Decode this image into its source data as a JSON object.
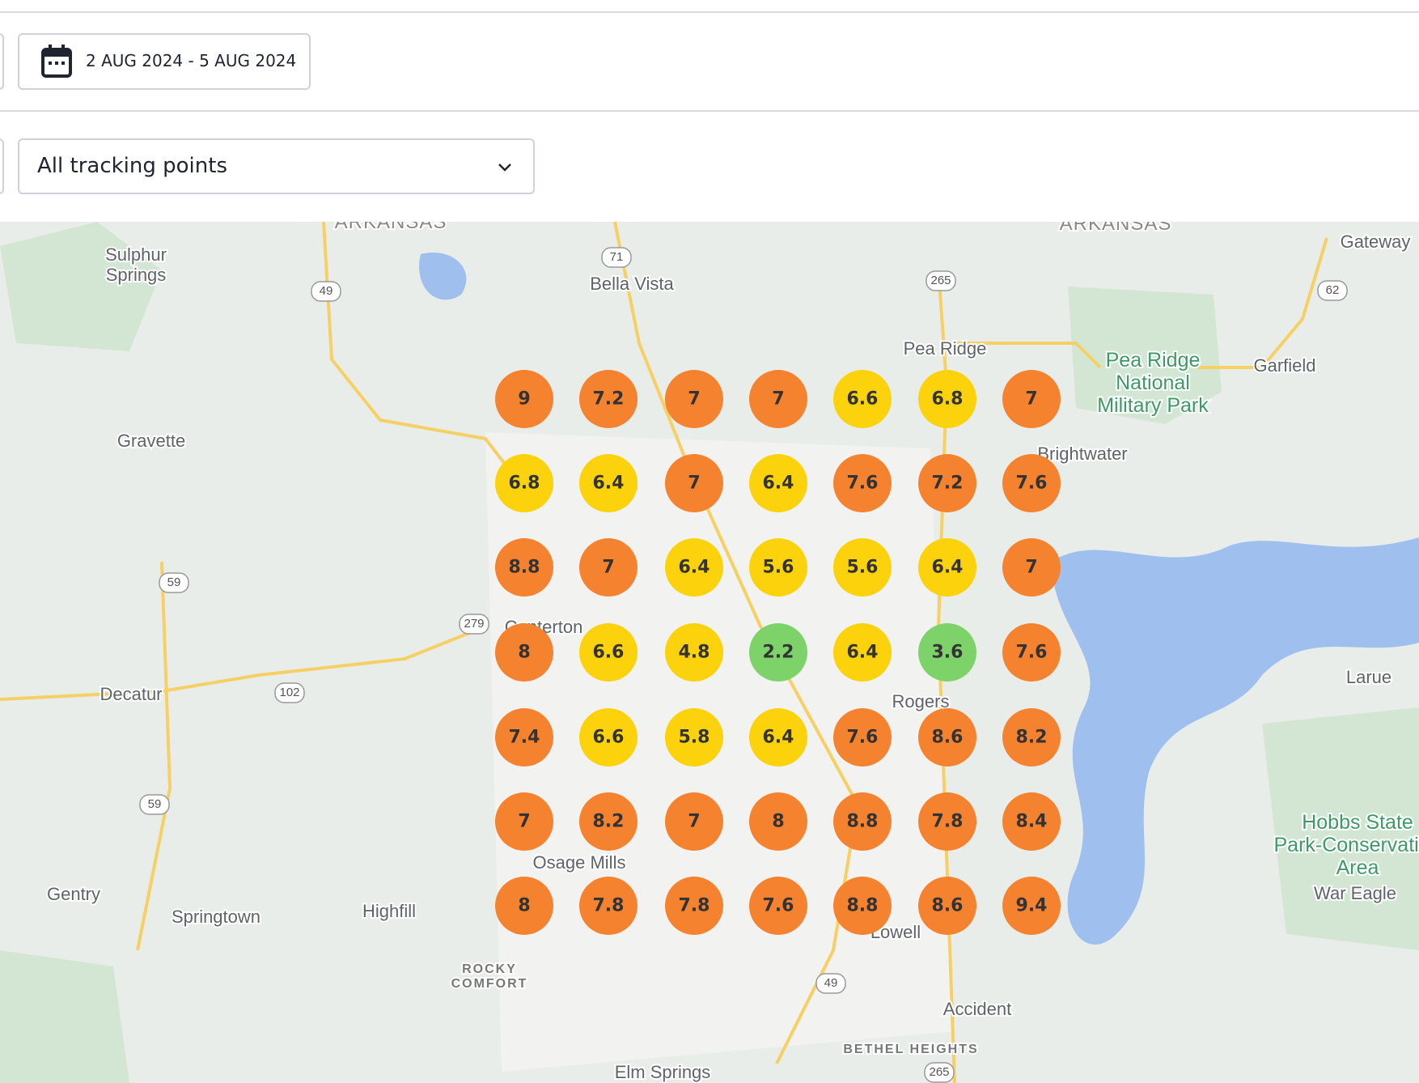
{
  "toolbar": {
    "date_range": "2 AUG 2024 - 5 AUG 2024",
    "filter": "All tracking points"
  },
  "map": {
    "labels": [
      [
        "ARKANSAS"
      ],
      [
        "ARKANSAS"
      ],
      [
        "Sulphur",
        "Springs"
      ],
      [
        "Bella Vista"
      ],
      [
        "Pea Ridge"
      ],
      [
        "Pea Ridge",
        "National",
        "Military Park"
      ],
      [
        "Garfield"
      ],
      [
        "Gateway"
      ],
      [
        "Gravette"
      ],
      [
        "Brightwater"
      ],
      [
        "Decatur"
      ],
      [
        "Centerton"
      ],
      [
        "Rogers"
      ],
      [
        "Osage Mills"
      ],
      [
        "Gentry"
      ],
      [
        "Springtown"
      ],
      [
        "Highfill"
      ],
      [
        "Lowell"
      ],
      [
        "Accident"
      ],
      [
        "Larue"
      ],
      [
        "War Eagle"
      ],
      [
        "Elm Springs"
      ],
      [
        "Hobbs State",
        "Park-Conservation",
        "Area"
      ],
      [
        "ROCKY",
        "COMFORT"
      ],
      [
        "BETHEL HEIGHTS"
      ]
    ],
    "routes": [
      "71",
      "49",
      "265",
      "62",
      "59",
      "102",
      "279",
      "59",
      "49",
      "265"
    ],
    "grid": [
      {
        "values": [
          9,
          7.2,
          7,
          7,
          6.6,
          6.8,
          7
        ],
        "colors": [
          "#f5822f",
          "#f5822f",
          "#f5822f",
          "#f5822f",
          "#fcd20c",
          "#fcd20c",
          "#f5822f"
        ]
      },
      {
        "values": [
          6.8,
          6.4,
          7,
          6.4,
          7.6,
          7.2,
          7.6
        ],
        "colors": [
          "#fcd20c",
          "#fcd20c",
          "#f5822f",
          "#fcd20c",
          "#f5822f",
          "#f5822f",
          "#f5822f"
        ]
      },
      {
        "values": [
          8.8,
          7,
          6.4,
          5.6,
          5.6,
          6.4,
          7
        ],
        "colors": [
          "#f5822f",
          "#f5822f",
          "#fcd20c",
          "#fcd20c",
          "#fcd20c",
          "#fcd20c",
          "#f5822f"
        ]
      },
      {
        "values": [
          8,
          6.6,
          4.8,
          2.2,
          6.4,
          3.6,
          7.6
        ],
        "colors": [
          "#f5822f",
          "#fcd20c",
          "#fcd20c",
          "#7dd36a",
          "#fcd20c",
          "#7dd36a",
          "#f5822f"
        ]
      },
      {
        "values": [
          7.4,
          6.6,
          5.8,
          6.4,
          7.6,
          8.6,
          8.2
        ],
        "colors": [
          "#f5822f",
          "#fcd20c",
          "#fcd20c",
          "#fcd20c",
          "#f5822f",
          "#f5822f",
          "#f5822f"
        ]
      },
      {
        "values": [
          7,
          8.2,
          7,
          8,
          8.8,
          7.8,
          8.4
        ],
        "colors": [
          "#f5822f",
          "#f5822f",
          "#f5822f",
          "#f5822f",
          "#f5822f",
          "#f5822f",
          "#f5822f"
        ]
      },
      {
        "values": [
          8,
          7.8,
          7.8,
          7.6,
          8.8,
          8.6,
          9.4
        ],
        "colors": [
          "#f5822f",
          "#f5822f",
          "#f5822f",
          "#f5822f",
          "#f5822f",
          "#f5822f",
          "#f5822f"
        ]
      }
    ]
  }
}
